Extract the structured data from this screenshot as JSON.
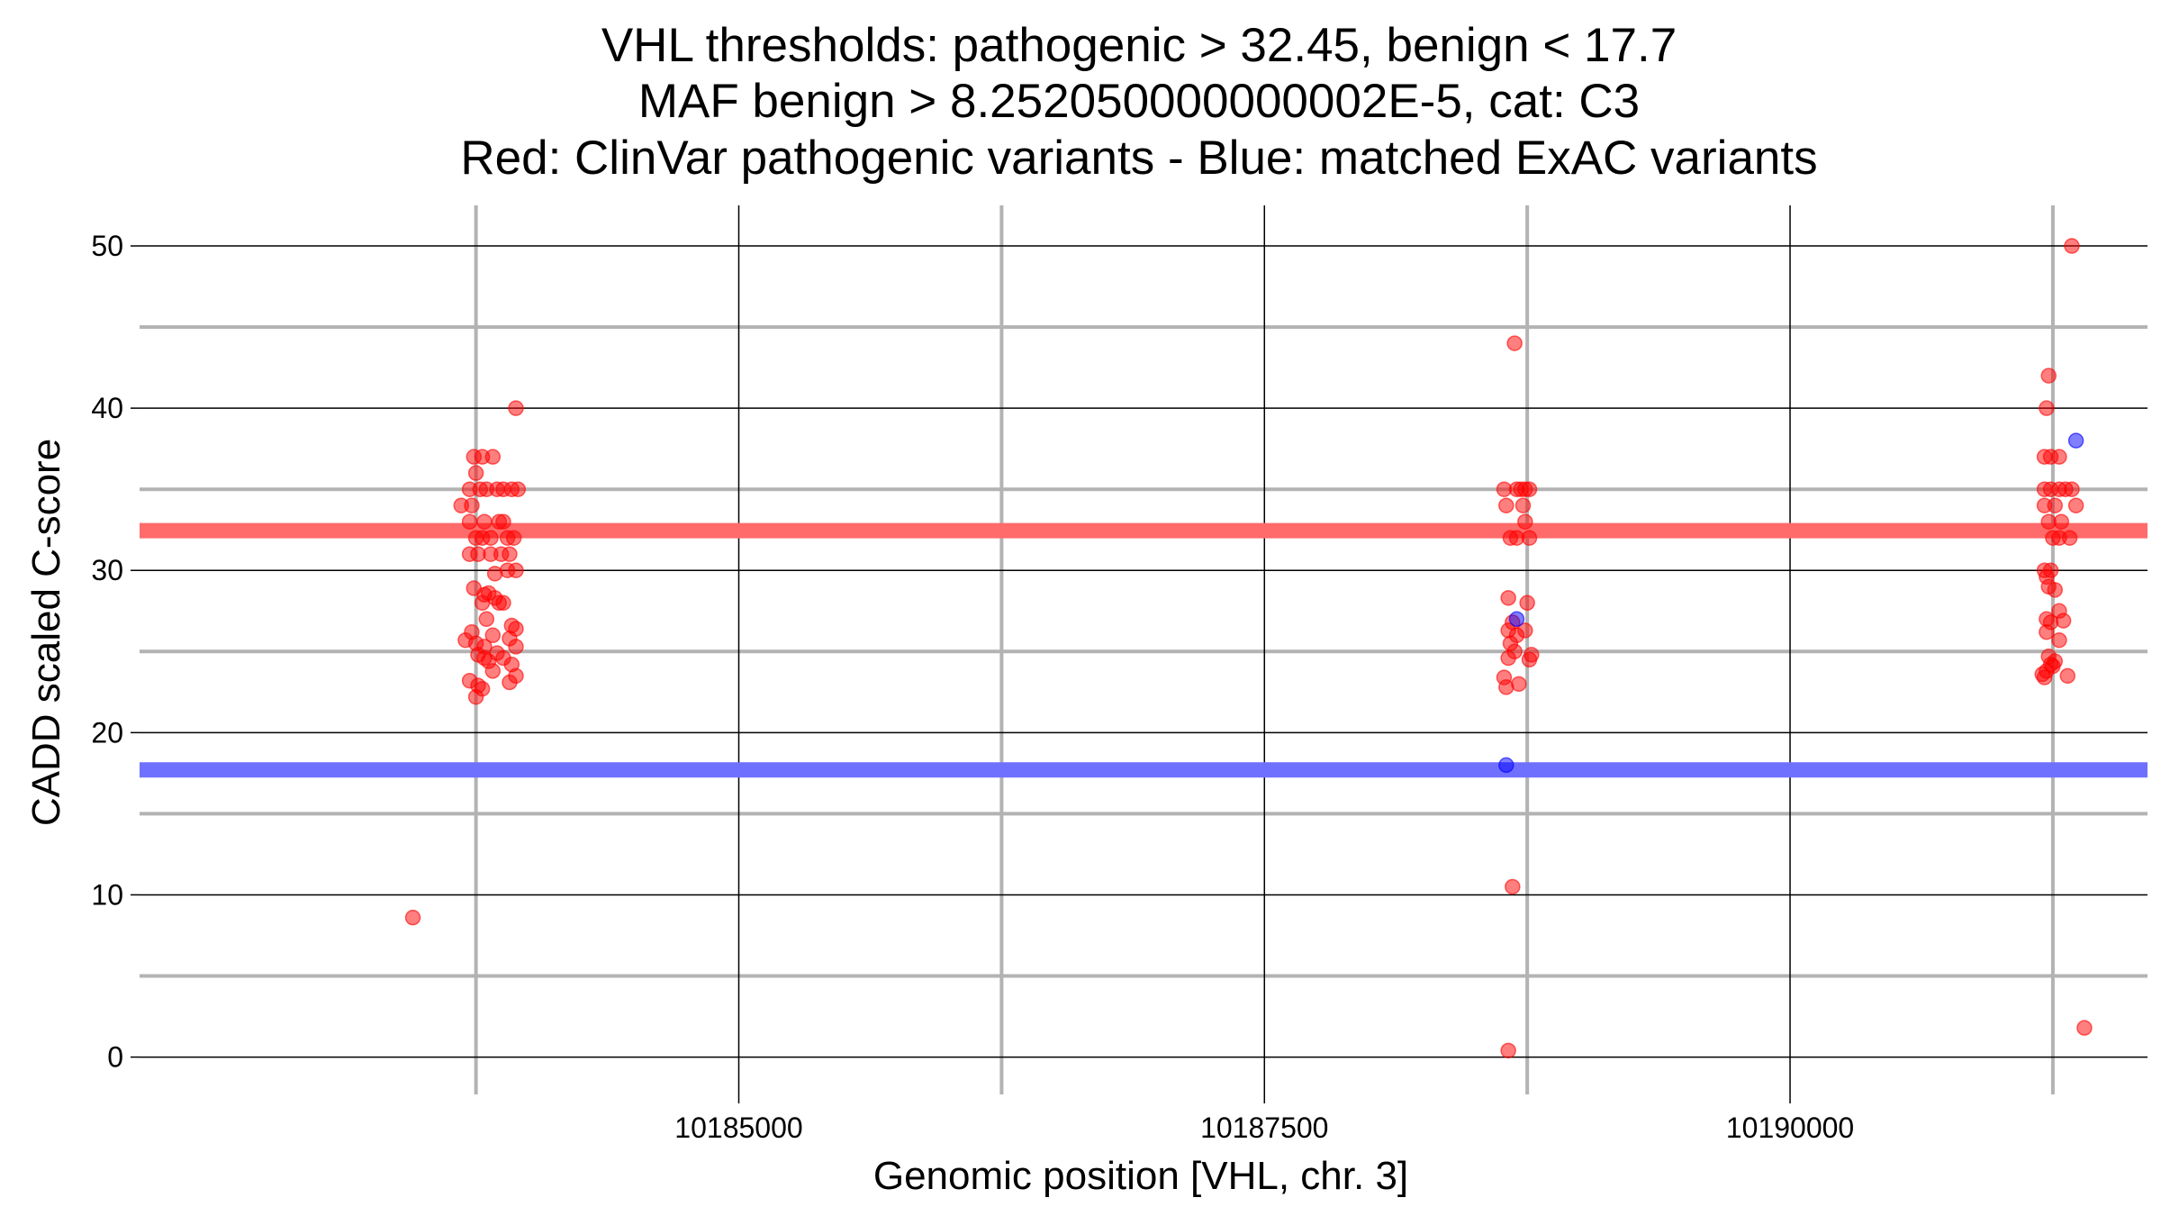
{
  "chart_data": {
    "type": "scatter",
    "title_lines": [
      "VHL thresholds: pathogenic > 32.45, benign < 17.7",
      "MAF benign > 8.252050000000002E-5, cat: C3",
      "Red: ClinVar pathogenic variants - Blue: matched ExAC variants"
    ],
    "xlabel": "Genomic position [VHL, chr. 3]",
    "ylabel": "CADD scaled C-score",
    "xlim": [
      10182150,
      10191700
    ],
    "ylim": [
      -2.3,
      52.5
    ],
    "x_ticks": [
      10185000,
      10187500,
      10190000
    ],
    "x_tick_labels": [
      "10185000",
      "10187500",
      "10190000"
    ],
    "x_minor_gridlines": [
      10183750,
      10186250,
      10188750,
      10191250
    ],
    "y_ticks": [
      0,
      10,
      20,
      30,
      40,
      50
    ],
    "y_tick_labels": [
      "0",
      "10",
      "20",
      "30",
      "40",
      "50"
    ],
    "y_minor_gridlines": [
      5,
      15,
      25,
      35,
      45
    ],
    "grid": true,
    "thresholds": [
      {
        "name": "pathogenic",
        "value": 32.45,
        "color": "#ff6b6b"
      },
      {
        "name": "benign",
        "value": 17.7,
        "color": "#7070ff"
      }
    ],
    "series": [
      {
        "color": "#ff0000",
        "points": [
          [
            10183450,
            8.6
          ],
          [
            10183680,
            34.0
          ],
          [
            10183730,
            34.0
          ],
          [
            10183720,
            35.0
          ],
          [
            10183770,
            35.0
          ],
          [
            10183800,
            35.0
          ],
          [
            10183850,
            35.0
          ],
          [
            10183880,
            35.0
          ],
          [
            10183920,
            35.0
          ],
          [
            10183950,
            35.0
          ],
          [
            10183740,
            37.0
          ],
          [
            10183780,
            37.0
          ],
          [
            10183830,
            37.0
          ],
          [
            10183750,
            36.0
          ],
          [
            10183940,
            40.0
          ],
          [
            10183720,
            33.0
          ],
          [
            10183790,
            33.0
          ],
          [
            10183860,
            33.0
          ],
          [
            10183880,
            33.0
          ],
          [
            10183750,
            32.0
          ],
          [
            10183780,
            32.0
          ],
          [
            10183820,
            32.0
          ],
          [
            10183900,
            32.0
          ],
          [
            10183930,
            32.0
          ],
          [
            10183720,
            31.0
          ],
          [
            10183760,
            31.0
          ],
          [
            10183820,
            31.0
          ],
          [
            10183870,
            31.0
          ],
          [
            10183910,
            31.0
          ],
          [
            10183900,
            30.0
          ],
          [
            10183940,
            30.0
          ],
          [
            10183840,
            29.8
          ],
          [
            10183740,
            28.9
          ],
          [
            10183790,
            28.5
          ],
          [
            10183810,
            28.6
          ],
          [
            10183840,
            28.3
          ],
          [
            10183780,
            28.0
          ],
          [
            10183860,
            28.0
          ],
          [
            10183880,
            28.0
          ],
          [
            10183800,
            27.0
          ],
          [
            10183920,
            26.6
          ],
          [
            10183940,
            26.4
          ],
          [
            10183730,
            26.2
          ],
          [
            10183830,
            26.0
          ],
          [
            10183700,
            25.7
          ],
          [
            10183750,
            25.5
          ],
          [
            10183790,
            25.3
          ],
          [
            10183910,
            25.8
          ],
          [
            10183940,
            25.3
          ],
          [
            10183760,
            24.8
          ],
          [
            10183790,
            24.6
          ],
          [
            10183850,
            24.9
          ],
          [
            10183880,
            24.6
          ],
          [
            10183810,
            24.4
          ],
          [
            10183920,
            24.2
          ],
          [
            10183830,
            23.8
          ],
          [
            10183720,
            23.2
          ],
          [
            10183910,
            23.1
          ],
          [
            10183940,
            23.5
          ],
          [
            10183760,
            22.9
          ],
          [
            10183780,
            22.7
          ],
          [
            10183750,
            22.2
          ],
          [
            10188690,
            44.0
          ],
          [
            10188640,
            35.0
          ],
          [
            10188700,
            35.0
          ],
          [
            10188720,
            35.0
          ],
          [
            10188740,
            35.0
          ],
          [
            10188760,
            35.0
          ],
          [
            10188650,
            34.0
          ],
          [
            10188730,
            34.0
          ],
          [
            10188740,
            33.0
          ],
          [
            10188670,
            32.0
          ],
          [
            10188700,
            32.0
          ],
          [
            10188760,
            32.0
          ],
          [
            10188660,
            28.3
          ],
          [
            10188750,
            28.0
          ],
          [
            10188680,
            26.8
          ],
          [
            10188660,
            26.3
          ],
          [
            10188740,
            26.3
          ],
          [
            10188700,
            26.0
          ],
          [
            10188670,
            25.5
          ],
          [
            10188690,
            25.0
          ],
          [
            10188770,
            24.8
          ],
          [
            10188760,
            24.5
          ],
          [
            10188660,
            24.6
          ],
          [
            10188640,
            23.4
          ],
          [
            10188650,
            22.8
          ],
          [
            10188710,
            23.0
          ],
          [
            10188680,
            10.5
          ],
          [
            10188660,
            0.4
          ],
          [
            10191340,
            50.0
          ],
          [
            10191230,
            42.0
          ],
          [
            10191220,
            40.0
          ],
          [
            10191210,
            37.0
          ],
          [
            10191240,
            37.0
          ],
          [
            10191280,
            37.0
          ],
          [
            10191210,
            35.0
          ],
          [
            10191240,
            35.0
          ],
          [
            10191280,
            35.0
          ],
          [
            10191310,
            35.0
          ],
          [
            10191340,
            35.0
          ],
          [
            10191210,
            34.0
          ],
          [
            10191260,
            34.0
          ],
          [
            10191360,
            34.0
          ],
          [
            10191230,
            33.0
          ],
          [
            10191290,
            33.0
          ],
          [
            10191250,
            32.0
          ],
          [
            10191280,
            32.0
          ],
          [
            10191330,
            32.0
          ],
          [
            10191210,
            30.0
          ],
          [
            10191240,
            30.0
          ],
          [
            10191220,
            29.6
          ],
          [
            10191230,
            29.0
          ],
          [
            10191260,
            28.8
          ],
          [
            10191280,
            27.5
          ],
          [
            10191220,
            27.0
          ],
          [
            10191240,
            26.8
          ],
          [
            10191300,
            26.9
          ],
          [
            10191220,
            26.2
          ],
          [
            10191280,
            25.7
          ],
          [
            10191230,
            24.7
          ],
          [
            10191260,
            24.4
          ],
          [
            10191250,
            24.1
          ],
          [
            10191200,
            23.6
          ],
          [
            10191220,
            23.8
          ],
          [
            10191240,
            24.2
          ],
          [
            10191320,
            23.5
          ],
          [
            10191210,
            23.4
          ],
          [
            10191400,
            1.8
          ]
        ]
      },
      {
        "color": "#0000ff",
        "points": [
          [
            10188700,
            27.0
          ],
          [
            10188650,
            18.0
          ],
          [
            10191360,
            38.0
          ]
        ]
      }
    ]
  }
}
